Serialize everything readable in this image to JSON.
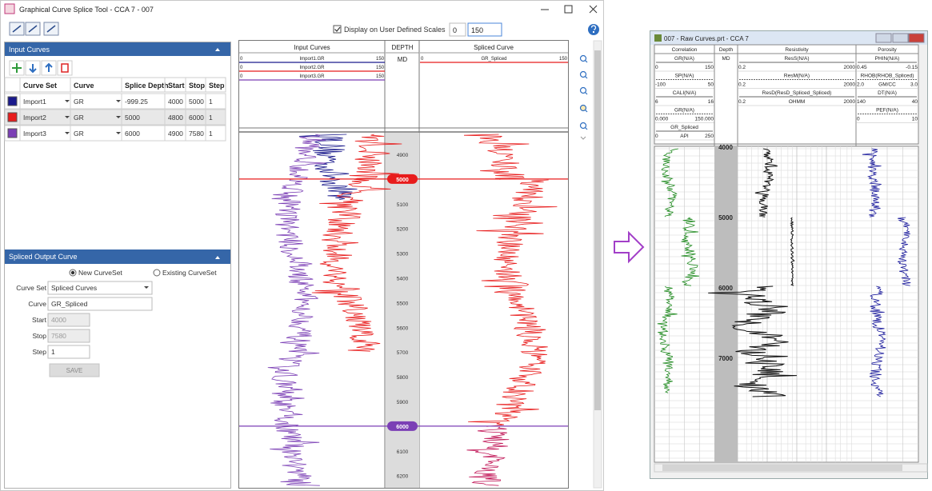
{
  "window": {
    "title": "Graphical Curve Splice Tool - CCA 7 - 007"
  },
  "toolbar": {
    "display_scales_label": "Display on User Defined Scales",
    "scale_min": "0",
    "scale_max": "150"
  },
  "input_panel": {
    "title": "Input Curves",
    "columns": [
      "Curve Set",
      "Curve",
      "Splice Depth",
      "Start",
      "Stop",
      "Step"
    ],
    "rows": [
      [
        "Import1",
        "GR",
        "-999.25",
        "4000",
        "5000",
        "1"
      ],
      [
        "Import2",
        "GR",
        "5000",
        "4800",
        "6000",
        "1"
      ],
      [
        "Import3",
        "GR",
        "6000",
        "4900",
        "7580",
        "1"
      ]
    ],
    "row_colors": [
      "#1a1a8c",
      "#e81c1c",
      "#7b3fb5"
    ]
  },
  "output_panel": {
    "title": "Spliced Output Curve",
    "options": [
      "New CurveSet",
      "Existing CurveSet"
    ],
    "fields": [
      {
        "label": "Curve Set",
        "value": "Spliced Curves"
      },
      {
        "label": "Curve",
        "value": "GR_Spliced"
      },
      {
        "label": "Start",
        "value": "4000"
      },
      {
        "label": "Stop",
        "value": "7580"
      },
      {
        "label": "Step",
        "value": "1"
      }
    ],
    "save": "SAVE"
  },
  "plot": {
    "input_title": "Input Curves",
    "depth_title": "DEPTH",
    "depth_unit": "MD",
    "spliced_title": "Spliced Curve",
    "input_curves": [
      {
        "name": "Import1.GR",
        "min": "0",
        "max": "150",
        "color": "#1a1a8c"
      },
      {
        "name": "Import2.GR",
        "min": "0",
        "max": "150",
        "color": "#e81c1c"
      },
      {
        "name": "Import3.GR",
        "min": "0",
        "max": "150",
        "color": "#7b3fb5"
      }
    ],
    "spliced_curve": {
      "name": "GR_Spliced",
      "min": "0",
      "max": "150",
      "color": "#e81c1c"
    },
    "depth_labels": [
      4900,
      5000,
      5100,
      5200,
      5300,
      5400,
      5500,
      5600,
      5700,
      5800,
      5900,
      6000,
      6100,
      6200
    ],
    "splice_markers": [
      {
        "depth": 5000,
        "color": "#e81c1c"
      },
      {
        "depth": 6000,
        "color": "#7b3fb5"
      }
    ]
  },
  "log_window": {
    "title": "007 - Raw Curves.prt - CCA 7",
    "tracks": [
      {
        "title": "Correlation",
        "curves": [
          {
            "name": "GR(N/A)",
            "left": "0",
            "right": "150"
          },
          {
            "name": "SP(N/A)",
            "left": "-100",
            "right": "50"
          },
          {
            "name": "CALI(N/A)",
            "left": "6",
            "right": "16"
          },
          {
            "name": "GR(N/A)",
            "left": "0.000",
            "right": "150.000"
          },
          {
            "name": "GR_Spliced",
            "left": "0",
            "unit": "API",
            "right": "250"
          }
        ]
      },
      {
        "title": "Depth",
        "curves": [
          {
            "name": "MD"
          }
        ]
      },
      {
        "title": "Resistivity",
        "curves": [
          {
            "name": "ResS(N/A)",
            "left": "0.2",
            "right": "2000"
          },
          {
            "name": "ResM(N/A)",
            "left": "0.2",
            "right": "2000"
          },
          {
            "name": "ResD(ResD_Spliced_Spliced)",
            "left": "0.2",
            "unit": "OHMM",
            "right": "2000"
          }
        ]
      },
      {
        "title": "Porosity",
        "curves": [
          {
            "name": "PHIN(N/A)",
            "left": "0.45",
            "right": "-0.15"
          },
          {
            "name": "RHOB(RHOB_Spliced)",
            "left": "2.0",
            "unit": "GM/CC",
            "right": "3.0"
          },
          {
            "name": "DT(N/A)",
            "left": "140",
            "right": "40"
          },
          {
            "name": "PEF(N/A)",
            "left": "0",
            "right": "10"
          }
        ]
      }
    ],
    "depth_labels": [
      4000,
      5000,
      6000,
      7000
    ]
  }
}
